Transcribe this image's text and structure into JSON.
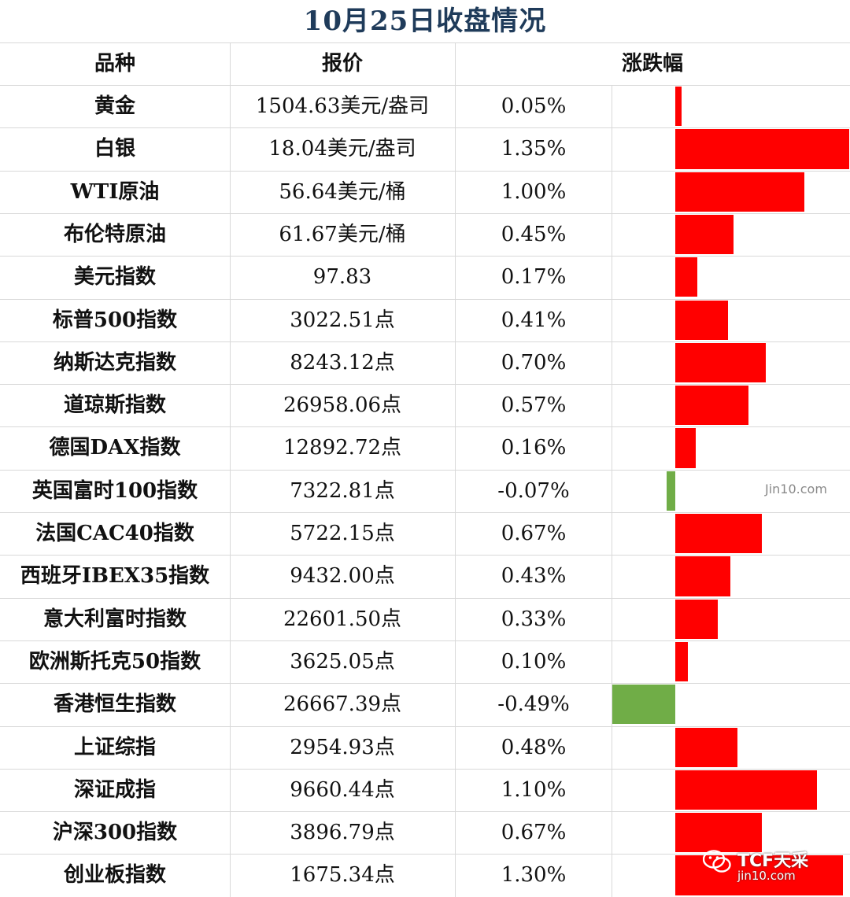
{
  "title": "10月25日收盘情况",
  "headers": {
    "name": "品种",
    "price": "报价",
    "change": "涨跌幅"
  },
  "colors": {
    "up": "#ff0000",
    "down": "#70ad47",
    "title": "#1f3b5a"
  },
  "chart_data": {
    "type": "bar",
    "title": "10月25日收盘情况",
    "categories": [
      "黄金",
      "白银",
      "WTI原油",
      "布伦特原油",
      "美元指数",
      "标普500指数",
      "纳斯达克指数",
      "道琼斯指数",
      "德国DAX指数",
      "英国富时100指数",
      "法国CAC40指数",
      "西班牙IBEX35指数",
      "意大利富时指数",
      "欧洲斯托克50指数",
      "香港恒生指数",
      "上证综指",
      "深证成指",
      "沪深300指数",
      "创业板指数"
    ],
    "prices": [
      "1504.63美元/盎司",
      "18.04美元/盎司",
      "56.64美元/桶",
      "61.67美元/桶",
      "97.83",
      "3022.51点",
      "8243.12点",
      "26958.06点",
      "12892.72点",
      "7322.81点",
      "5722.15点",
      "9432.00点",
      "22601.50点",
      "3625.05点",
      "26667.39点",
      "2954.93点",
      "9660.44点",
      "3896.79点",
      "1675.34点"
    ],
    "values": [
      0.05,
      1.35,
      1.0,
      0.45,
      0.17,
      0.41,
      0.7,
      0.57,
      0.16,
      -0.07,
      0.67,
      0.43,
      0.33,
      0.1,
      -0.49,
      0.48,
      1.1,
      0.67,
      1.3
    ],
    "value_labels": [
      "0.05%",
      "1.35%",
      "1.00%",
      "0.45%",
      "0.17%",
      "0.41%",
      "0.70%",
      "0.57%",
      "0.16%",
      "-0.07%",
      "0.67%",
      "0.43%",
      "0.33%",
      "0.10%",
      "-0.49%",
      "0.48%",
      "1.10%",
      "0.67%",
      "1.30%"
    ],
    "xlim": [
      -0.49,
      1.35
    ],
    "unit": "%"
  },
  "watermark": "Jin10.com",
  "logo": {
    "icon": "wechat-icon",
    "name": "TCF天采",
    "sub": "jin10.com"
  }
}
